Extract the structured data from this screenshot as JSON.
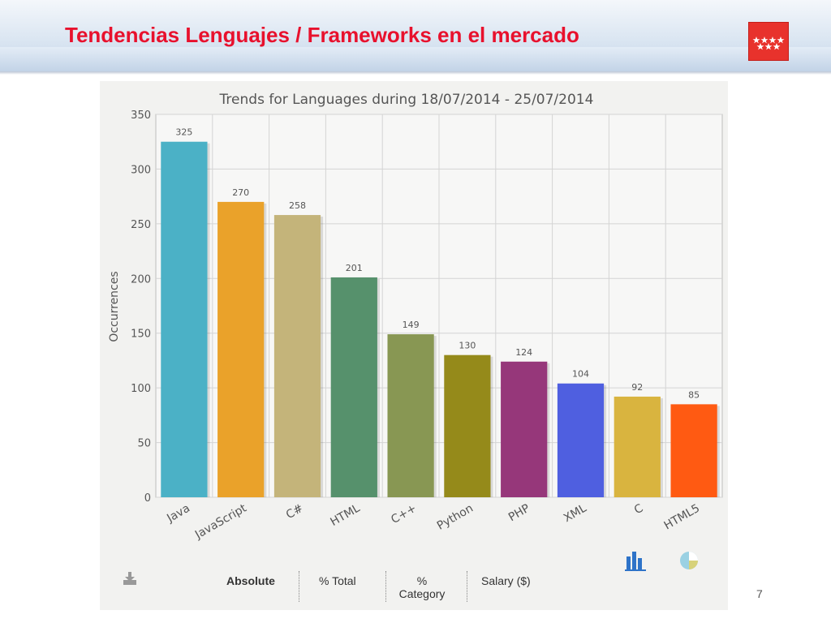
{
  "slide": {
    "title": "Tendencias Lenguajes / Frameworks en el mercado",
    "page_number": "7",
    "title_color": "#e8112d"
  },
  "chart_data": {
    "type": "bar",
    "title": "Trends for Languages during 18/07/2014 - 25/07/2014",
    "xlabel": "",
    "ylabel": "Occurrences",
    "ylim": [
      0,
      350
    ],
    "yticks": [
      0,
      50,
      100,
      150,
      200,
      250,
      300,
      350
    ],
    "grid": true,
    "legend": "none",
    "categories": [
      "Java",
      "JavaScript",
      "C#",
      "HTML",
      "C++",
      "Python",
      "PHP",
      "XML",
      "C",
      "HTML5"
    ],
    "values": [
      325,
      270,
      258,
      201,
      149,
      130,
      124,
      104,
      92,
      85
    ],
    "colors": [
      "#4bb1c6",
      "#eaa22a",
      "#c4b47a",
      "#56916c",
      "#889753",
      "#958a1a",
      "#96377a",
      "#4f5fe0",
      "#d9b43f",
      "#ff5a12"
    ]
  },
  "toolbar": {
    "download_icon": "download-icon",
    "absolute_label": "Absolute",
    "total_label": "% Total",
    "category_label_line1": "%",
    "category_label_line2": "Category",
    "salary_label": "Salary ($)",
    "bar_chart_icon": "bar-chart-icon",
    "pie_chart_icon": "pie-chart-icon"
  }
}
